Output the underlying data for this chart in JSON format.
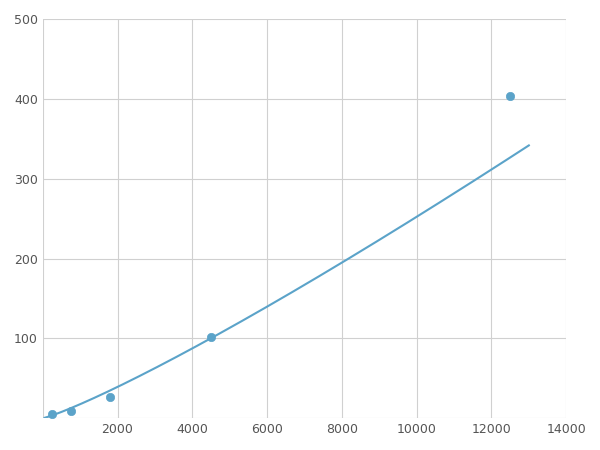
{
  "x": [
    246,
    750,
    1800,
    4500,
    12500
  ],
  "y": [
    5,
    9,
    27,
    102,
    403
  ],
  "line_color": "#5ba3c9",
  "marker_color": "#5ba3c9",
  "marker_size": 6,
  "line_width": 1.5,
  "xlim": [
    0,
    14000
  ],
  "ylim": [
    0,
    500
  ],
  "xticks": [
    0,
    2000,
    4000,
    6000,
    8000,
    10000,
    12000,
    14000
  ],
  "yticks": [
    0,
    100,
    200,
    300,
    400,
    500
  ],
  "grid_color": "#d0d0d0",
  "bg_color": "#ffffff",
  "fig_bg_color": "#ffffff"
}
